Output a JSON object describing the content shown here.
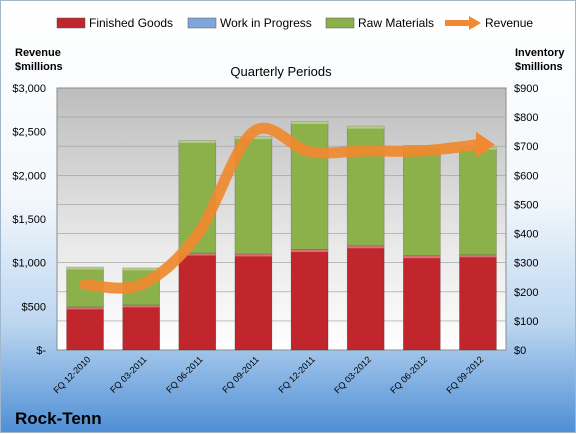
{
  "chart_data": {
    "type": "bar",
    "subtitle": "Quarterly Periods",
    "brand": "Rock-Tenn",
    "categories": [
      "FQ 12-2010",
      "FQ 03-2011",
      "FQ 06-2011",
      "FQ 09-2011",
      "FQ 12-2011",
      "FQ 03-2012",
      "FQ 06-2012",
      "FQ 09-2012"
    ],
    "left_axis": {
      "title_line1": "Revenue",
      "title_line2": "$millions",
      "ylim": [
        0,
        3000
      ],
      "ticks": [
        "$-",
        "$500",
        "$1,000",
        "$1,500",
        "$2,000",
        "$2,500",
        "$3,000"
      ]
    },
    "right_axis": {
      "title_line1": "Inventory",
      "title_line2": "$millions",
      "ylim": [
        0,
        900
      ],
      "ticks": [
        "$0",
        "$100",
        "$200",
        "$300",
        "$400",
        "$500",
        "$600",
        "$700",
        "$800",
        "$900"
      ]
    },
    "series": [
      {
        "name": "Finished Goods",
        "axis": "right",
        "kind": "stacked-bar",
        "color": "#c0262b",
        "values": [
          148,
          155,
          333,
          330,
          345,
          358,
          324,
          327
        ]
      },
      {
        "name": "Work in Progress",
        "axis": "right",
        "kind": "stacked-bar",
        "color": "#7ea6dc",
        "values": [
          0,
          0,
          0,
          0,
          0,
          0,
          0,
          0
        ]
      },
      {
        "name": "Raw Materials",
        "axis": "right",
        "kind": "stacked-bar",
        "color": "#8cb04a",
        "values": [
          137,
          127,
          387,
          403,
          440,
          411,
          379,
          370
        ]
      },
      {
        "name": "Revenue",
        "axis": "left",
        "kind": "line",
        "color": "#f0892f",
        "values": [
          750,
          750,
          1320,
          2500,
          2270,
          2280,
          2280,
          2350
        ]
      }
    ],
    "grid": true,
    "legend": "top"
  }
}
